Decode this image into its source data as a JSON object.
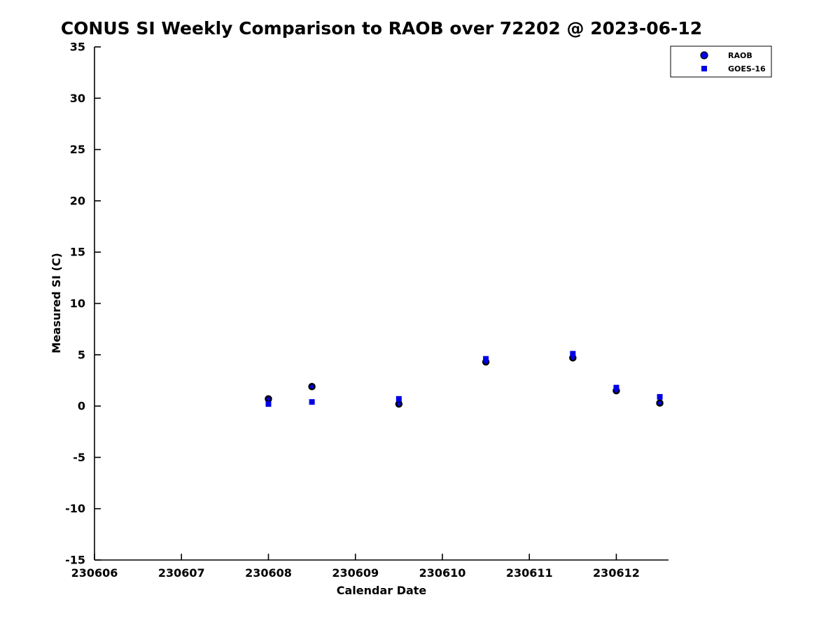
{
  "figure": {
    "background": "#ffffff"
  },
  "chart_data": {
    "type": "scatter",
    "title": "CONUS SI Weekly Comparison to RAOB over 72202 @ 2023-06-12",
    "xlabel": "Calendar Date",
    "ylabel": "Measured SI (C)",
    "xlim": [
      230606,
      230612.6
    ],
    "ylim": [
      -15,
      35
    ],
    "xticks": [
      230606,
      230607,
      230608,
      230609,
      230610,
      230611,
      230612
    ],
    "yticks": [
      -15,
      -10,
      -5,
      0,
      5,
      10,
      15,
      20,
      25,
      30,
      35
    ],
    "grid": false,
    "axis_color": "#000000",
    "legend": {
      "position": "top-right",
      "entries": [
        "RAOB",
        "GOES-16"
      ]
    },
    "series": [
      {
        "name": "RAOB",
        "marker": "circle",
        "color": "#0000e6",
        "edge_color": "#000000",
        "x": [
          230608.0,
          230608.5,
          230609.5,
          230610.5,
          230611.5,
          230612.0,
          230612.5
        ],
        "y": [
          0.7,
          1.9,
          0.2,
          4.3,
          4.7,
          1.5,
          0.3
        ]
      },
      {
        "name": "GOES-16",
        "marker": "square",
        "color": "#0000e6",
        "edge_color": "#0000e6",
        "x": [
          230608.0,
          230608.5,
          230609.5,
          230610.5,
          230611.5,
          230612.0,
          230612.5
        ],
        "y": [
          0.2,
          0.4,
          0.7,
          4.6,
          5.1,
          1.8,
          0.9
        ]
      }
    ]
  }
}
